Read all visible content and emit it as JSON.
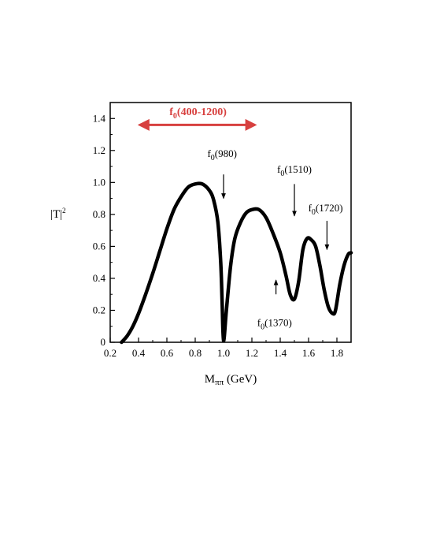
{
  "chart_data": {
    "type": "line",
    "xlabel_main": "M",
    "xlabel_sub": "ππ",
    "xlabel_unit": " (GeV)",
    "ylabel_main": "|T|",
    "ylabel_sup": "2",
    "xlim": [
      0.2,
      1.9
    ],
    "ylim": [
      0,
      1.5
    ],
    "xticks": [
      "0.2",
      "0.4",
      "0.6",
      "0.8",
      "1.0",
      "1.2",
      "1.4",
      "1.6",
      "1.8"
    ],
    "yticks": [
      "0",
      "0.2",
      "0.4",
      "0.6",
      "0.8",
      "1.0",
      "1.2",
      "1.4"
    ],
    "grid": false,
    "series": [
      {
        "x": [
          0.28,
          0.32,
          0.36,
          0.4,
          0.45,
          0.5,
          0.55,
          0.6,
          0.65,
          0.7,
          0.75,
          0.8,
          0.85,
          0.9,
          0.93,
          0.96,
          0.98,
          0.99,
          1.0,
          1.02,
          1.05,
          1.08,
          1.12,
          1.16,
          1.2,
          1.25,
          1.3,
          1.35,
          1.4,
          1.44,
          1.47,
          1.5,
          1.53,
          1.56,
          1.59,
          1.62,
          1.65,
          1.68,
          1.71,
          1.74,
          1.77,
          1.79,
          1.82,
          1.85,
          1.88,
          1.9
        ],
        "y": [
          0.0,
          0.04,
          0.1,
          0.18,
          0.3,
          0.43,
          0.57,
          0.71,
          0.83,
          0.91,
          0.97,
          0.99,
          0.99,
          0.95,
          0.89,
          0.75,
          0.5,
          0.25,
          0.01,
          0.2,
          0.48,
          0.65,
          0.75,
          0.81,
          0.83,
          0.83,
          0.78,
          0.68,
          0.56,
          0.42,
          0.3,
          0.27,
          0.38,
          0.58,
          0.65,
          0.64,
          0.6,
          0.48,
          0.33,
          0.22,
          0.18,
          0.2,
          0.36,
          0.48,
          0.55,
          0.56
        ]
      }
    ],
    "annotations": [
      {
        "main": "f",
        "sub": "0",
        "rest": "(400-1200)",
        "color": "#d7403f",
        "arrow": "double-horizontal",
        "x_from": 0.41,
        "x_to": 1.22,
        "y": 1.36,
        "text_x": 0.82,
        "text_y": 1.42
      },
      {
        "main": "f",
        "sub": "0",
        "rest": "(980)",
        "arrow": "down",
        "x": 1.0,
        "y_from": 1.05,
        "y_to": 0.9,
        "text_x": 0.99,
        "text_y": 1.16
      },
      {
        "main": "f",
        "sub": "0",
        "rest": "(1510)",
        "arrow": "down",
        "x": 1.5,
        "y_from": 0.99,
        "y_to": 0.79,
        "text_x": 1.5,
        "text_y": 1.06
      },
      {
        "main": "f",
        "sub": "0",
        "rest": "(1720)",
        "arrow": "down",
        "x": 1.73,
        "y_from": 0.76,
        "y_to": 0.58,
        "text_x": 1.72,
        "text_y": 0.82
      },
      {
        "main": "f",
        "sub": "0",
        "rest": "(1370)",
        "arrow": "up",
        "x": 1.37,
        "y_from": 0.3,
        "y_to": 0.39,
        "text_x": 1.36,
        "text_y": 0.1
      }
    ]
  }
}
